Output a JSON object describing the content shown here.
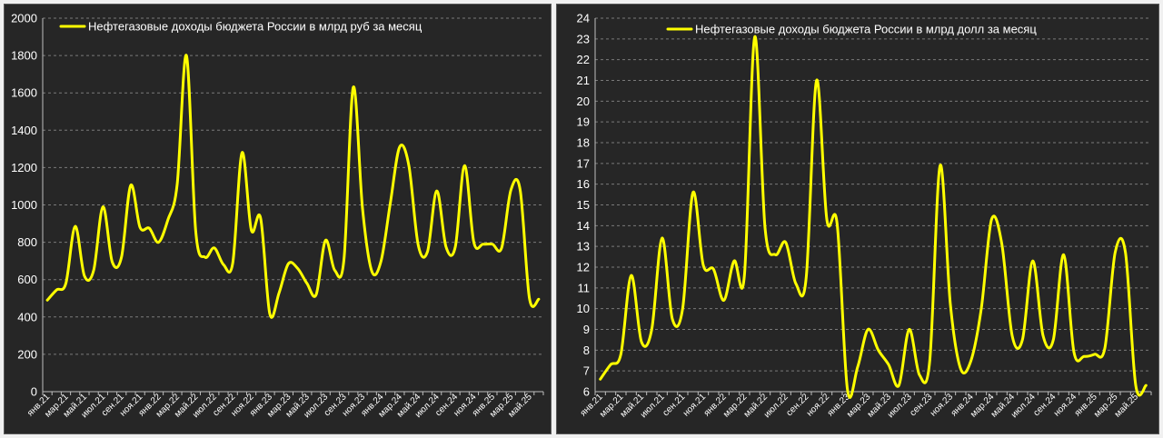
{
  "chart_data": [
    {
      "type": "line",
      "legend": "Нефтегазовые доходы бюджета России в млрд руб за месяц",
      "legend_position": "top-center",
      "color": "#ffff00",
      "grid": true,
      "ylim": [
        0,
        2000
      ],
      "yticks": [
        "0",
        "200",
        "400",
        "600",
        "800",
        "1000",
        "1200",
        "1400",
        "1600",
        "1800",
        "2000"
      ],
      "categories": [
        "янв.21",
        "фев.21",
        "мар.21",
        "апр.21",
        "май.21",
        "июн.21",
        "июл.21",
        "авг.21",
        "сен.21",
        "окт.21",
        "ноя.21",
        "дек.21",
        "янв.22",
        "фев.22",
        "мар.22",
        "апр.22",
        "май.22",
        "июн.22",
        "июл.22",
        "авг.22",
        "сен.22",
        "окт.22",
        "ноя.22",
        "дек.22",
        "янв.23",
        "фев.23",
        "мар.23",
        "апр.23",
        "май.23",
        "июн.23",
        "июл.23",
        "авг.23",
        "сен.23",
        "окт.23",
        "ноя.23",
        "дек.23",
        "янв.24",
        "фев.24",
        "мар.24",
        "апр.24",
        "май.24",
        "июн.24",
        "июл.24",
        "авг.24",
        "сен.24",
        "окт.24",
        "ноя.24",
        "дек.24",
        "янв.25",
        "фев.25",
        "мар.25",
        "апр.25",
        "май.25",
        "июн.25"
      ],
      "xtick_labels": [
        "янв.21",
        "мар.21",
        "май.21",
        "июл.21",
        "сен.21",
        "ноя.21",
        "янв.22",
        "мар.22",
        "май.22",
        "июл.22",
        "сен.22",
        "ноя.22",
        "янв.23",
        "мар.23",
        "май.23",
        "июл.23",
        "сен.23",
        "ноя.23",
        "янв.24",
        "мар.24",
        "май.24",
        "июл.24",
        "сен.24",
        "ноя.24",
        "янв.25",
        "мар.25",
        "май.25"
      ],
      "values": [
        490,
        545,
        580,
        885,
        620,
        650,
        990,
        695,
        720,
        1105,
        880,
        875,
        800,
        920,
        1110,
        1800,
        860,
        720,
        770,
        680,
        690,
        1280,
        865,
        930,
        415,
        530,
        685,
        660,
        580,
        520,
        810,
        650,
        710,
        1630,
        980,
        645,
        700,
        1010,
        1310,
        1210,
        785,
        750,
        1075,
        775,
        775,
        1210,
        800,
        790,
        790,
        770,
        1080,
        1080,
        500,
        495
      ]
    },
    {
      "type": "line",
      "legend": "Нефтегазовые доходы бюджета России в млрд долл за месяц",
      "legend_position": "top-center",
      "color": "#ffff00",
      "grid": true,
      "ylim": [
        6,
        24
      ],
      "yticks": [
        "6",
        "7",
        "8",
        "9",
        "10",
        "11",
        "12",
        "13",
        "14",
        "15",
        "16",
        "17",
        "18",
        "19",
        "20",
        "21",
        "22",
        "23",
        "24"
      ],
      "categories": [
        "янв.21",
        "фев.21",
        "мар.21",
        "апр.21",
        "май.21",
        "июн.21",
        "июл.21",
        "авг.21",
        "сен.21",
        "окт.21",
        "ноя.21",
        "дек.21",
        "янв.22",
        "фев.22",
        "мар.22",
        "апр.22",
        "май.22",
        "июн.22",
        "июл.22",
        "авг.22",
        "сен.22",
        "окт.22",
        "ноя.22",
        "дек.22",
        "янв.23",
        "фев.23",
        "мар.23",
        "апр.23",
        "май.23",
        "июн.23",
        "июл.23",
        "авг.23",
        "сен.23",
        "окт.23",
        "ноя.23",
        "дек.23",
        "янв.24",
        "фев.24",
        "мар.24",
        "апр.24",
        "май.24",
        "июн.24",
        "июл.24",
        "авг.24",
        "сен.24",
        "окт.24",
        "ноя.24",
        "дек.24",
        "янв.25",
        "фев.25",
        "мар.25",
        "апр.25",
        "май.25",
        "июн.25"
      ],
      "xtick_labels": [
        "янв.21",
        "мар.21",
        "май.21",
        "июл.21",
        "сен.21",
        "ноя.21",
        "янв.22",
        "мар.22",
        "май.22",
        "июл.22",
        "сен.22",
        "ноя.22",
        "янв.23",
        "мар.23",
        "май.23",
        "июл.23",
        "сен.23",
        "ноя.23",
        "янв.24",
        "мар.24",
        "май.24",
        "июл.24",
        "сен.24",
        "ноя.24",
        "янв.25",
        "мар.25",
        "май.25"
      ],
      "values": [
        6.6,
        7.3,
        7.8,
        11.6,
        8.4,
        9.0,
        13.4,
        9.5,
        10.0,
        15.6,
        12.1,
        11.9,
        10.4,
        12.3,
        11.6,
        23.1,
        13.9,
        12.6,
        13.2,
        11.2,
        11.5,
        21.0,
        14.3,
        14.1,
        6.1,
        7.2,
        9.0,
        8.0,
        7.3,
        6.3,
        9.0,
        6.8,
        7.5,
        16.9,
        10.2,
        7.1,
        7.5,
        10.0,
        14.3,
        13.1,
        8.7,
        8.5,
        12.3,
        8.7,
        8.5,
        12.6,
        7.9,
        7.7,
        7.8,
        8.1,
        12.7,
        12.7,
        6.3,
        6.3
      ]
    }
  ]
}
